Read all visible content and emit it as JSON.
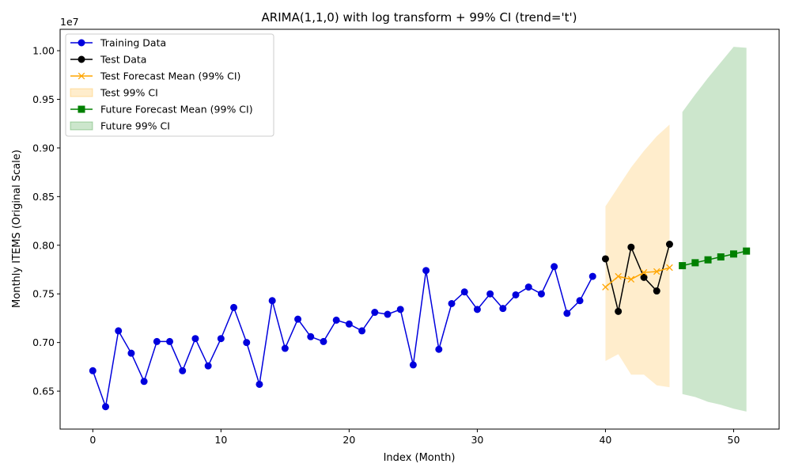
{
  "chart_data": {
    "type": "line",
    "title": "ARIMA(1,1,0) with log transform + 99% CI (trend='t')",
    "xlabel": "Index (Month)",
    "ylabel": "Monthly ITEMS (Original Scale)",
    "y_offset_label": "1e7",
    "xlim": [
      -2.55,
      53.55
    ],
    "ylim": [
      6.11,
      10.22
    ],
    "x_ticks": [
      0,
      10,
      20,
      30,
      40,
      50
    ],
    "x_tick_labels": [
      "0",
      "10",
      "20",
      "30",
      "40",
      "50"
    ],
    "y_ticks": [
      6.5,
      7.0,
      7.5,
      8.0,
      8.5,
      9.0,
      9.5,
      10.0
    ],
    "y_tick_labels": [
      "0.65",
      "0.70",
      "0.75",
      "0.80",
      "0.85",
      "0.90",
      "0.95",
      "1.00"
    ],
    "grid": false,
    "legend_position": "top-left",
    "legend": [
      {
        "label": "Training Data",
        "kind": "line",
        "color": "#0000dd",
        "marker": "circle"
      },
      {
        "label": "Test Data",
        "kind": "line",
        "color": "#000000",
        "marker": "circle"
      },
      {
        "label": "Test Forecast Mean (99% CI)",
        "kind": "line",
        "color": "#ffa500",
        "marker": "x"
      },
      {
        "label": "Test 99% CI",
        "kind": "band",
        "color": "#ffa500",
        "opacity": 0.2
      },
      {
        "label": "Future Forecast Mean (99% CI)",
        "kind": "line",
        "color": "#008000",
        "marker": "square"
      },
      {
        "label": "Future 99% CI",
        "kind": "band",
        "color": "#008000",
        "opacity": 0.2
      }
    ],
    "series": [
      {
        "name": "Training Data",
        "color": "#0000dd",
        "marker": "circle",
        "x": [
          0,
          1,
          2,
          3,
          4,
          5,
          6,
          7,
          8,
          9,
          10,
          11,
          12,
          13,
          14,
          15,
          16,
          17,
          18,
          19,
          20,
          21,
          22,
          23,
          24,
          25,
          26,
          27,
          28,
          29,
          30,
          31,
          32,
          33,
          34,
          35,
          36,
          37,
          38,
          39
        ],
        "y": [
          6.71,
          6.34,
          7.12,
          6.89,
          6.6,
          7.01,
          7.01,
          6.71,
          7.04,
          6.76,
          7.04,
          7.36,
          7.0,
          6.57,
          7.43,
          6.94,
          7.24,
          7.06,
          7.01,
          7.23,
          7.19,
          7.12,
          7.31,
          7.29,
          7.34,
          6.77,
          7.74,
          6.93,
          7.4,
          7.52,
          7.34,
          7.5,
          7.35,
          7.49,
          7.57,
          7.5,
          7.78,
          7.3,
          7.43,
          7.68
        ]
      },
      {
        "name": "Test Data",
        "color": "#000000",
        "marker": "circle",
        "x": [
          40,
          41,
          42,
          43,
          44,
          45
        ],
        "y": [
          7.86,
          7.32,
          7.98,
          7.67,
          7.53,
          8.01
        ]
      },
      {
        "name": "Test Forecast Mean (99% CI)",
        "color": "#ffa500",
        "marker": "x",
        "x": [
          40,
          41,
          42,
          43,
          44,
          45
        ],
        "y": [
          7.57,
          7.68,
          7.65,
          7.72,
          7.73,
          7.77
        ]
      },
      {
        "name": "Future Forecast Mean (99% CI)",
        "color": "#008000",
        "marker": "square",
        "x": [
          46,
          47,
          48,
          49,
          50,
          51
        ],
        "y": [
          7.79,
          7.82,
          7.85,
          7.88,
          7.91,
          7.94
        ]
      }
    ],
    "bands": [
      {
        "name": "Test 99% CI",
        "color": "#ffa500",
        "opacity": 0.2,
        "x": [
          40,
          41,
          42,
          43,
          44,
          45
        ],
        "lower": [
          6.81,
          6.88,
          6.67,
          6.67,
          6.56,
          6.54
        ],
        "upper": [
          8.4,
          8.6,
          8.8,
          8.97,
          9.12,
          9.24
        ]
      },
      {
        "name": "Future 99% CI",
        "color": "#008000",
        "opacity": 0.2,
        "x": [
          46,
          47,
          48,
          49,
          50,
          51
        ],
        "lower": [
          6.47,
          6.44,
          6.39,
          6.36,
          6.32,
          6.29
        ],
        "upper": [
          9.37,
          9.55,
          9.72,
          9.88,
          10.04,
          10.03
        ]
      }
    ]
  }
}
